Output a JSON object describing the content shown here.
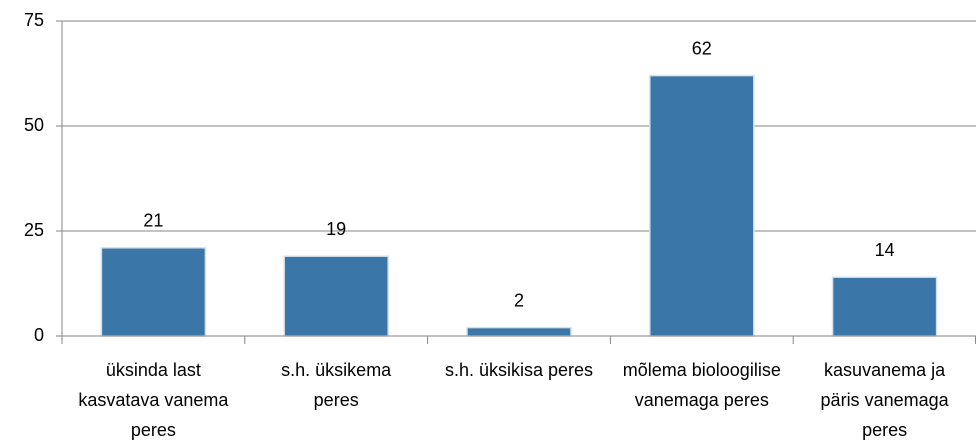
{
  "chart_data": {
    "type": "bar",
    "categories": [
      "üksinda last kasvatava vanema peres",
      "s.h. üksikema peres",
      "s.h. üksikisa peres",
      "mõlema bioloogilise vanemaga peres",
      "kasuvanema ja päris vanemaga peres"
    ],
    "values": [
      21,
      19,
      2,
      62,
      14
    ],
    "color": "#3b76a8",
    "ylim": [
      0,
      75
    ],
    "yticks": [
      0,
      25,
      50,
      75
    ],
    "grid": true
  }
}
